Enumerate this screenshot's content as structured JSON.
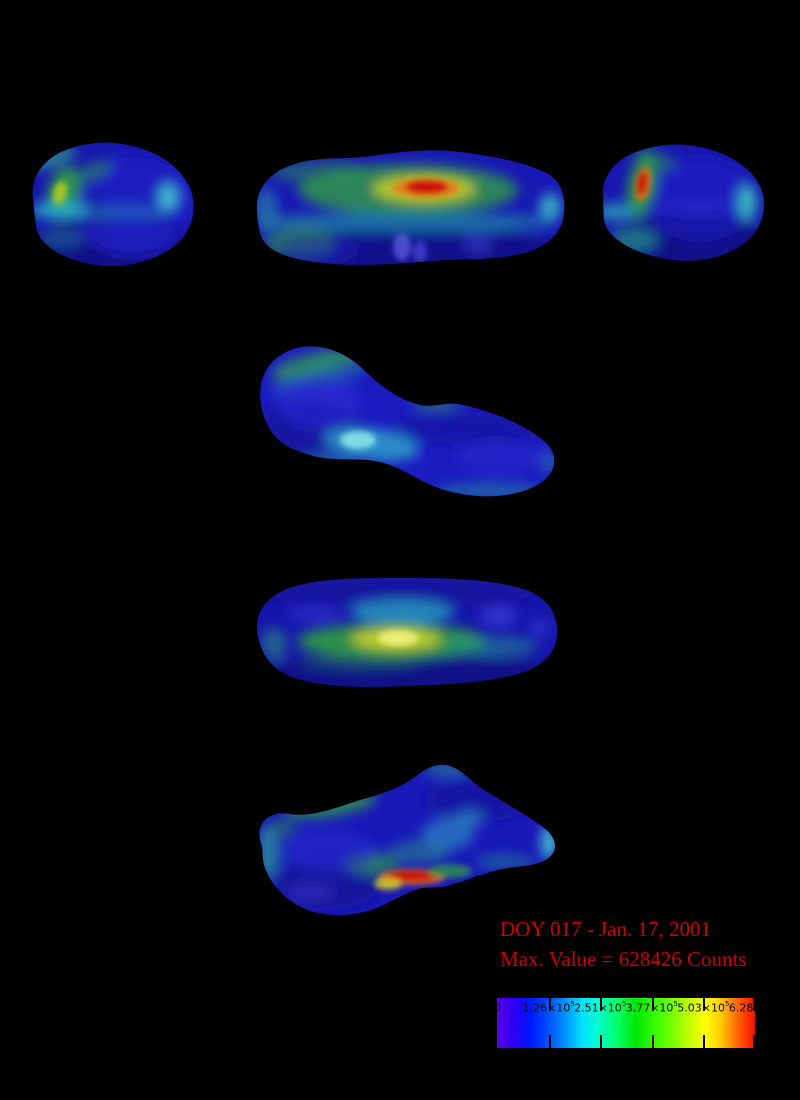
{
  "figure": {
    "background": "#000000",
    "caption": {
      "line1": "DOY 017 - Jan. 17, 2001",
      "line2": "Max. Value = 628426 Counts",
      "color": "#cc0000"
    }
  },
  "colorbar_ui": {
    "ticks": [
      {
        "label": "0",
        "exp": "",
        "pos": 0.0
      },
      {
        "label": "1.26×10",
        "exp": "5",
        "pos": 0.2
      },
      {
        "label": "2.51×10",
        "exp": "5",
        "pos": 0.4
      },
      {
        "label": "3.77×10",
        "exp": "5",
        "pos": 0.6
      },
      {
        "label": "5.03×10",
        "exp": "5",
        "pos": 0.8
      },
      {
        "label": "6.28×10",
        "exp": "5",
        "pos": 1.0
      }
    ]
  },
  "chart_data": {
    "type": "heatmap",
    "title": "DOY 017 - Jan. 17, 2001",
    "annotation": "Max. Value = 628426 Counts",
    "max_value_counts": 628426,
    "units": "Counts",
    "legend_position": "bottom-right",
    "colorbar": {
      "orientation": "horizontal",
      "min": 0,
      "max": 628426,
      "tick_values": [
        0,
        126000,
        251000,
        377000,
        503000,
        628000
      ],
      "tick_labels": [
        "0",
        "1.26×10^5",
        "2.51×10^5",
        "3.77×10^5",
        "5.03×10^5",
        "6.28×10^5"
      ],
      "palette": [
        "#5a00e6",
        "#0000ff",
        "#0099ff",
        "#00e0ff",
        "#00ffd0",
        "#00e800",
        "#8cff00",
        "#ffff00",
        "#ffc800",
        "#ff7700",
        "#e81400"
      ]
    },
    "views": [
      "end-on view, left of top row: blue body, green-yellow patch left, cyan band, cyan spot right",
      "long-axis view, center of top row: blue body, green upper band with red-orange hotspot at center, teal stripe",
      "end-on view, right of top row: blue body, red streak upper-left in green patch, teal right edge",
      "oblique shoe-shaped view, second row: deep blue, green ridge top-left, bright cyan patch lower center",
      "long-axis view, third row: dark blue, bright green-yellow central band, cyan patch above",
      "irregular long-axis view, fourth row: blue body, green ridge upper-left, red-orange hotspot bottom center, cyan right tip"
    ]
  }
}
